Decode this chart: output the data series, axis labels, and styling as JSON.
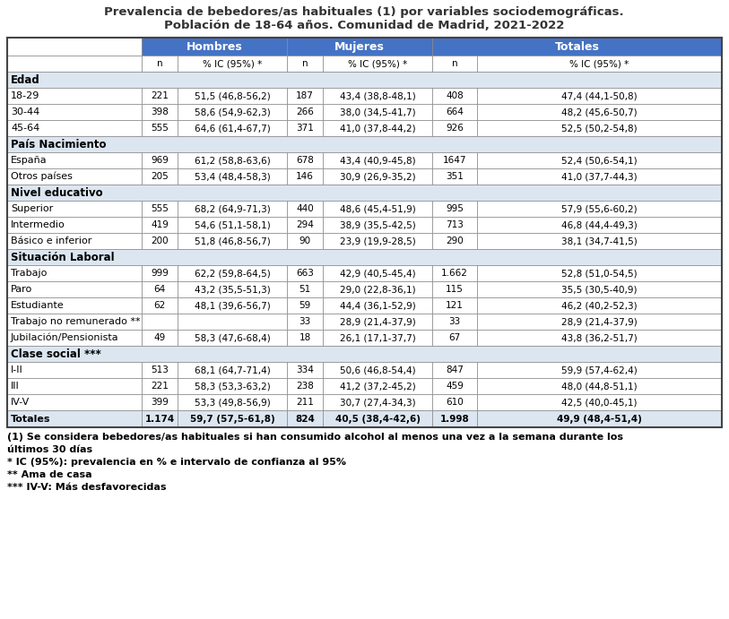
{
  "title_line1": "Prevalencia de bebedores/as habituales (1) por variables sociodemográficas.",
  "title_line2": "Población de 18-64 años. Comunidad de Madrid, 2021-2022",
  "header_bg": "#4472C4",
  "header_fg": "#FFFFFF",
  "section_bg": "#DCE6F1",
  "totals_bg": "#DCE6F1",
  "row_bg": "#FFFFFF",
  "col_positions": [
    8,
    158,
    198,
    320,
    360,
    482,
    532,
    805
  ],
  "rows": [
    {
      "type": "header_group",
      "label": "",
      "data": [
        "",
        "Hombres",
        "",
        "Mujeres",
        "",
        "Totales",
        ""
      ]
    },
    {
      "type": "header_sub",
      "label": "",
      "data": [
        "n",
        "% IC (95%) *",
        "n",
        "% IC (95%) *",
        "n",
        "% IC (95%) *"
      ]
    },
    {
      "type": "section",
      "label": "Edad",
      "data": []
    },
    {
      "type": "data",
      "label": "18-29",
      "data": [
        "221",
        "51,5 (46,8-56,2)",
        "187",
        "43,4 (38,8-48,1)",
        "408",
        "47,4 (44,1-50,8)"
      ]
    },
    {
      "type": "data",
      "label": "30-44",
      "data": [
        "398",
        "58,6 (54,9-62,3)",
        "266",
        "38,0 (34,5-41,7)",
        "664",
        "48,2 (45,6-50,7)"
      ]
    },
    {
      "type": "data",
      "label": "45-64",
      "data": [
        "555",
        "64,6 (61,4-67,7)",
        "371",
        "41,0 (37,8-44,2)",
        "926",
        "52,5 (50,2-54,8)"
      ]
    },
    {
      "type": "section",
      "label": "País Nacimiento",
      "data": []
    },
    {
      "type": "data",
      "label": "España",
      "data": [
        "969",
        "61,2 (58,8-63,6)",
        "678",
        "43,4 (40,9-45,8)",
        "1647",
        "52,4 (50,6-54,1)"
      ]
    },
    {
      "type": "data",
      "label": "Otros países",
      "data": [
        "205",
        "53,4 (48,4-58,3)",
        "146",
        "30,9 (26,9-35,2)",
        "351",
        "41,0 (37,7-44,3)"
      ]
    },
    {
      "type": "section",
      "label": "Nivel educativo",
      "data": []
    },
    {
      "type": "data",
      "label": "Superior",
      "data": [
        "555",
        "68,2 (64,9-71,3)",
        "440",
        "48,6 (45,4-51,9)",
        "995",
        "57,9 (55,6-60,2)"
      ]
    },
    {
      "type": "data",
      "label": "Intermedio",
      "data": [
        "419",
        "54,6 (51,1-58,1)",
        "294",
        "38,9 (35,5-42,5)",
        "713",
        "46,8 (44,4-49,3)"
      ]
    },
    {
      "type": "data",
      "label": "Básico e inferior",
      "data": [
        "200",
        "51,8 (46,8-56,7)",
        "90",
        "23,9 (19,9-28,5)",
        "290",
        "38,1 (34,7-41,5)"
      ]
    },
    {
      "type": "section",
      "label": "Situación Laboral",
      "data": []
    },
    {
      "type": "data",
      "label": "Trabajo",
      "data": [
        "999",
        "62,2 (59,8-64,5)",
        "663",
        "42,9 (40,5-45,4)",
        "1.662",
        "52,8 (51,0-54,5)"
      ]
    },
    {
      "type": "data",
      "label": "Paro",
      "data": [
        "64",
        "43,2 (35,5-51,3)",
        "51",
        "29,0 (22,8-36,1)",
        "115",
        "35,5 (30,5-40,9)"
      ]
    },
    {
      "type": "data",
      "label": "Estudiante",
      "data": [
        "62",
        "48,1 (39,6-56,7)",
        "59",
        "44,4 (36,1-52,9)",
        "121",
        "46,2 (40,2-52,3)"
      ]
    },
    {
      "type": "data",
      "label": "Trabajo no remunerado **",
      "data": [
        "",
        "",
        "33",
        "28,9 (21,4-37,9)",
        "33",
        "28,9 (21,4-37,9)"
      ]
    },
    {
      "type": "data",
      "label": "Jubilación/Pensionista",
      "data": [
        "49",
        "58,3 (47,6-68,4)",
        "18",
        "26,1 (17,1-37,7)",
        "67",
        "43,8 (36,2-51,7)"
      ]
    },
    {
      "type": "section",
      "label": "Clase social ***",
      "data": []
    },
    {
      "type": "data",
      "label": "I-II",
      "data": [
        "513",
        "68,1 (64,7-71,4)",
        "334",
        "50,6 (46,8-54,4)",
        "847",
        "59,9 (57,4-62,4)"
      ]
    },
    {
      "type": "data",
      "label": "III",
      "data": [
        "221",
        "58,3 (53,3-63,2)",
        "238",
        "41,2 (37,2-45,2)",
        "459",
        "48,0 (44,8-51,1)"
      ]
    },
    {
      "type": "data",
      "label": "IV-V",
      "data": [
        "399",
        "53,3 (49,8-56,9)",
        "211",
        "30,7 (27,4-34,3)",
        "610",
        "42,5 (40,0-45,1)"
      ]
    },
    {
      "type": "totals",
      "label": "Totales",
      "data": [
        "1.174",
        "59,7 (57,5-61,8)",
        "824",
        "40,5 (38,4-42,6)",
        "1.998",
        "49,9 (48,4-51,4)"
      ]
    }
  ],
  "footnotes": [
    "(1) Se considera bebedores/as habituales si han consumido alcohol al menos una vez a la semana durante los últimos 30 días",
    "* IC (95%): prevalencia en % e intervalo de confianza al 95%",
    "** Ama de casa",
    "*** IV-V: Más desfavorecidas"
  ]
}
